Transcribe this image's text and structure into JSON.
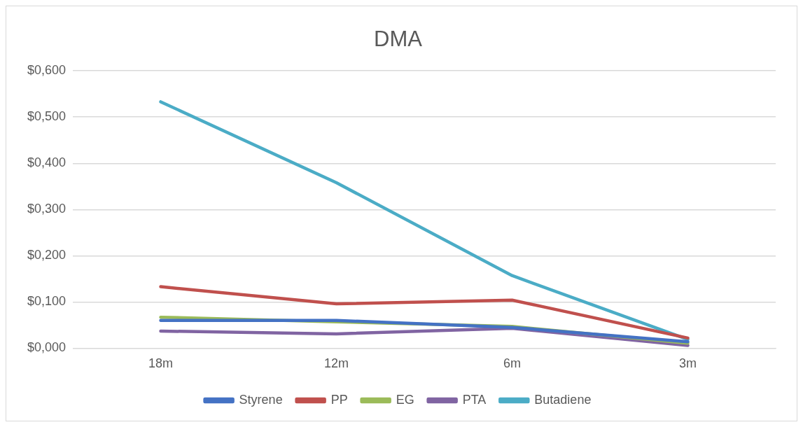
{
  "chart_data": {
    "type": "line",
    "title": "DMA",
    "categories": [
      "18m",
      "12m",
      "6m",
      "3m"
    ],
    "series": [
      {
        "name": "Styrene",
        "color": "#4472c4",
        "values": [
          0.06,
          0.06,
          0.045,
          0.014
        ]
      },
      {
        "name": "PP",
        "color": "#c0504d",
        "values": [
          0.133,
          0.096,
          0.104,
          0.022
        ]
      },
      {
        "name": "EG",
        "color": "#9bbb59",
        "values": [
          0.067,
          0.057,
          0.047,
          0.011
        ]
      },
      {
        "name": "PTA",
        "color": "#8064a2",
        "values": [
          0.037,
          0.031,
          0.043,
          0.006
        ]
      },
      {
        "name": "Butadiene",
        "color": "#4bacc6",
        "values": [
          0.533,
          0.358,
          0.157,
          0.019
        ]
      }
    ],
    "ylim": [
      0,
      0.6
    ],
    "yticks": [
      {
        "value": 0,
        "label": "$0,000"
      },
      {
        "value": 0.1,
        "label": "$0,100"
      },
      {
        "value": 0.2,
        "label": "$0,200"
      },
      {
        "value": 0.3,
        "label": "$0,300"
      },
      {
        "value": 0.4,
        "label": "$0,400"
      },
      {
        "value": 0.5,
        "label": "$0,500"
      },
      {
        "value": 0.6,
        "label": "$0,600"
      }
    ],
    "grid": "y",
    "legend": "bottom",
    "marker": "none",
    "line_style": "solid"
  }
}
